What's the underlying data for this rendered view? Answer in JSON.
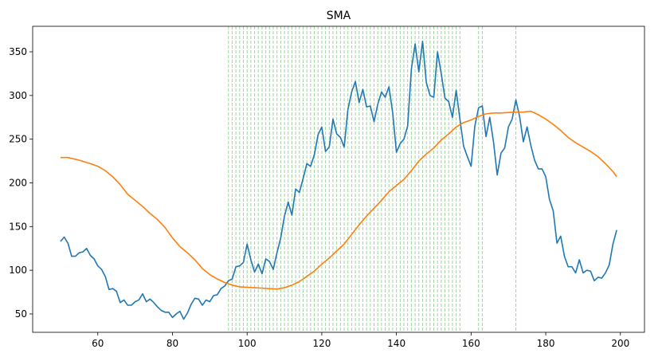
{
  "chart_data": {
    "type": "line",
    "title": "SMA",
    "xlim": [
      42.55,
      206.45
    ],
    "ylim": [
      29,
      379.2
    ],
    "xticks": [
      60,
      80,
      100,
      120,
      140,
      160,
      180,
      200
    ],
    "yticks": [
      50,
      100,
      150,
      200,
      250,
      300,
      350
    ],
    "vline_color": "#2ca02c",
    "vlines": [
      95,
      96,
      97,
      98,
      99,
      100,
      101,
      102,
      103,
      104,
      105,
      106,
      107,
      108,
      109,
      110,
      111,
      112,
      113,
      114,
      115,
      116,
      117,
      118,
      119,
      120,
      121,
      122,
      123,
      124,
      125,
      126,
      127,
      128,
      129,
      130,
      131,
      132,
      133,
      134,
      135,
      136,
      137,
      138,
      139,
      140,
      141,
      142,
      143,
      144,
      145,
      146,
      147,
      148,
      149,
      150,
      151,
      152,
      153,
      154,
      155,
      156,
      157,
      162,
      163,
      172
    ],
    "series": [
      {
        "color": "#1f77b4",
        "x": [
          50,
          51,
          52,
          53,
          54,
          55,
          56,
          57,
          58,
          59,
          60,
          61,
          62,
          63,
          64,
          65,
          66,
          67,
          68,
          69,
          70,
          71,
          72,
          73,
          74,
          75,
          76,
          77,
          78,
          79,
          80,
          81,
          82,
          83,
          84,
          85,
          86,
          87,
          88,
          89,
          90,
          91,
          92,
          93,
          94,
          95,
          96,
          97,
          98,
          99,
          100,
          101,
          102,
          103,
          104,
          105,
          106,
          107,
          108,
          109,
          110,
          111,
          112,
          113,
          114,
          115,
          116,
          117,
          118,
          119,
          120,
          121,
          122,
          123,
          124,
          125,
          126,
          127,
          128,
          129,
          130,
          131,
          132,
          133,
          134,
          135,
          136,
          137,
          138,
          139,
          140,
          141,
          142,
          143,
          144,
          145,
          146,
          147,
          148,
          149,
          150,
          151,
          152,
          153,
          154,
          155,
          156,
          157,
          158,
          159,
          160,
          161,
          162,
          163,
          164,
          165,
          166,
          167,
          168,
          169,
          170,
          171,
          172,
          173,
          174,
          175,
          176,
          177,
          178,
          179,
          180,
          181,
          182,
          183,
          184,
          185,
          186,
          187,
          188,
          189,
          190,
          191,
          192,
          193,
          194,
          195,
          196,
          197,
          198,
          199
        ],
        "values": [
          133,
          138,
          131,
          116,
          116,
          120,
          121,
          125,
          117,
          113,
          105,
          101,
          93,
          78,
          79,
          76,
          63,
          66,
          60,
          60,
          64,
          66,
          73,
          64,
          67,
          63,
          58,
          54,
          52,
          52,
          46,
          50,
          53,
          44,
          51,
          61,
          68,
          67,
          60,
          66,
          64,
          71,
          72,
          79,
          82,
          88,
          90,
          104,
          105,
          109,
          130,
          112,
          98,
          107,
          96,
          113,
          110,
          101,
          120,
          137,
          162,
          178,
          163,
          193,
          189,
          205,
          222,
          219,
          232,
          255,
          264,
          236,
          241,
          273,
          256,
          252,
          241,
          284,
          304,
          316,
          292,
          307,
          287,
          288,
          270,
          290,
          304,
          298,
          310,
          280,
          235,
          245,
          250,
          265,
          330,
          359,
          327,
          362,
          315,
          300,
          298,
          350,
          325,
          297,
          293,
          275,
          306,
          273,
          242,
          230,
          219,
          265,
          286,
          288,
          253,
          275,
          247,
          209,
          234,
          240,
          264,
          273,
          295,
          276,
          247,
          264,
          243,
          226,
          216,
          216,
          207,
          181,
          168,
          131,
          139,
          116,
          104,
          104,
          97,
          112,
          97,
          100,
          99,
          88,
          92,
          91,
          97,
          106,
          130,
          146
        ]
      },
      {
        "color": "#ff7f0e",
        "x": [
          50,
          52,
          55,
          58,
          60,
          62,
          64,
          66,
          68,
          70,
          72,
          74,
          76,
          78,
          80,
          82,
          84,
          86,
          88,
          90,
          92,
          94,
          96,
          98,
          100,
          102,
          104,
          106,
          108,
          110,
          112,
          114,
          116,
          118,
          120,
          122,
          124,
          126,
          128,
          130,
          132,
          134,
          136,
          138,
          140,
          142,
          144,
          146,
          148,
          150,
          152,
          154,
          156,
          158,
          160,
          162,
          164,
          166,
          168,
          170,
          172,
          174,
          176,
          178,
          180,
          182,
          184,
          186,
          188,
          190,
          192,
          194,
          196,
          198,
          199
        ],
        "values": [
          229,
          229,
          226,
          222,
          219,
          214,
          207,
          198,
          187,
          180,
          173,
          165,
          158,
          149,
          137,
          127,
          120,
          112,
          102,
          95,
          90,
          86,
          83,
          81,
          80.5,
          80,
          79.5,
          79,
          78.5,
          80,
          83,
          87,
          93,
          99,
          107,
          114,
          122,
          130,
          141,
          152,
          162,
          171,
          180,
          190,
          197,
          204,
          214,
          225,
          233,
          240,
          249,
          256,
          264,
          269,
          272,
          276,
          279,
          280,
          280,
          280.5,
          281,
          281,
          282,
          278,
          273,
          267,
          260,
          252,
          246,
          241,
          236,
          230,
          222,
          213,
          207
        ]
      }
    ]
  }
}
